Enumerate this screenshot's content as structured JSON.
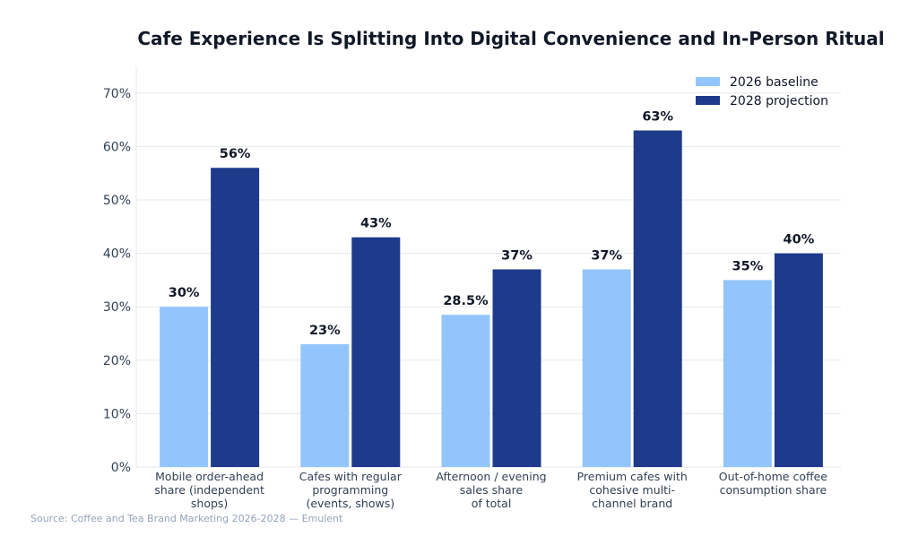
{
  "chart_data": {
    "type": "bar",
    "title": "Cafe Experience Is Splitting Into Digital Convenience and In-Person Ritual",
    "xlabel": "",
    "ylabel": "",
    "ylim": [
      0,
      75
    ],
    "yticks": [
      0,
      10,
      20,
      30,
      40,
      50,
      60,
      70
    ],
    "ytick_labels": [
      "0%",
      "10%",
      "20%",
      "30%",
      "40%",
      "50%",
      "60%",
      "70%"
    ],
    "grid": true,
    "legend_position": "top-right",
    "categories": [
      [
        "Mobile order-ahead",
        "share (independent",
        "shops)"
      ],
      [
        "Cafes with regular",
        "programming",
        "(events, shows)"
      ],
      [
        "Afternoon / evening",
        "sales share",
        "of total"
      ],
      [
        "Premium cafes with",
        "cohesive multi-",
        "channel brand"
      ],
      [
        "Out-of-home coffee",
        "consumption share"
      ]
    ],
    "series": [
      {
        "name": "2026 baseline",
        "color": "#93c5fd",
        "values": [
          30,
          23,
          28.5,
          37,
          35
        ],
        "labels": [
          "30%",
          "23%",
          "28.5%",
          "37%",
          "35%"
        ]
      },
      {
        "name": "2028 projection",
        "color": "#1e3a8a",
        "values": [
          56,
          43,
          37,
          63,
          40
        ],
        "labels": [
          "56%",
          "43%",
          "37%",
          "63%",
          "40%"
        ]
      }
    ],
    "source": "Source: Coffee and Tea Brand Marketing 2026-2028 — Emulent"
  }
}
